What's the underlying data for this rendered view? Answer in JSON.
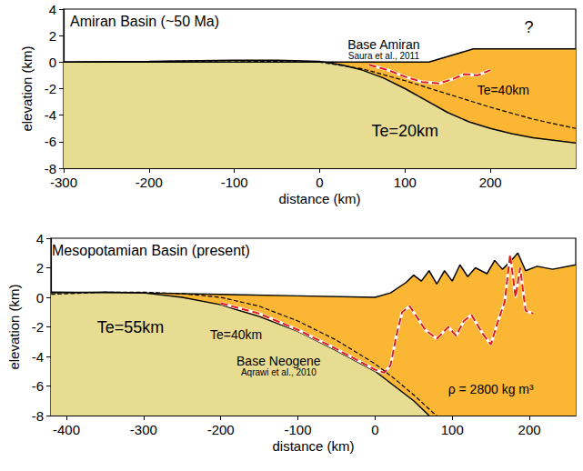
{
  "chart_data": [
    {
      "type": "line",
      "title": "Amiran Basin (~50 Ma)",
      "xlabel": "distance (km)",
      "ylabel": "elevation (km)",
      "xlim": [
        -300,
        300
      ],
      "xticks": [
        -300,
        -200,
        -100,
        0,
        100,
        200
      ],
      "ylim": [
        -8,
        4
      ],
      "yticks": [
        -8,
        -6,
        -4,
        -2,
        0,
        2,
        4
      ],
      "grid": false,
      "series": [
        {
          "type": "area",
          "color": "#fbb633",
          "x": [
            -300,
            128,
            180,
            300
          ],
          "values": [
            0,
            0,
            1,
            1
          ]
        },
        {
          "type": "area",
          "color": "#e8dc92",
          "x": [
            -300,
            -200,
            -100,
            -50,
            0,
            25,
            50,
            75,
            100,
            125,
            150,
            175,
            200,
            225,
            250,
            300
          ],
          "values": [
            0,
            0.05,
            0.15,
            0.15,
            0.05,
            -0.2,
            -0.6,
            -1.2,
            -2.0,
            -2.9,
            -3.8,
            -4.5,
            -5.0,
            -5.4,
            -5.7,
            -6.1
          ]
        },
        {
          "type": "line",
          "color": "#000000",
          "line_style": "dashed",
          "x": [
            -300,
            -200,
            -100,
            0,
            50,
            100,
            150,
            200,
            250,
            300
          ],
          "values": [
            0,
            0.05,
            0.1,
            0,
            -0.5,
            -1.4,
            -2.4,
            -3.4,
            -4.3,
            -5.0
          ]
        },
        {
          "type": "line",
          "color": "#e31a1c",
          "line_style": "dashed",
          "x": [
            58,
            80,
            100,
            120,
            140,
            155,
            170,
            185,
            200
          ],
          "values": [
            -0.2,
            -0.6,
            -1.1,
            -1.5,
            -1.6,
            -1.3,
            -0.9,
            -1.0,
            -0.6
          ]
        }
      ],
      "annotations": [
        {
          "text": "Base Amiran",
          "x": 75,
          "y": 1.35
        },
        {
          "text": "Saura et al., 2011",
          "x": 75,
          "y": 0.5
        },
        {
          "text": "?",
          "x": 245,
          "y": 2.6
        },
        {
          "text": "Te=40km",
          "x": 215,
          "y": -2.1
        },
        {
          "text": "Te=20km",
          "x": 100,
          "y": -5.2
        }
      ]
    },
    {
      "type": "line",
      "title": "Mesopotamian Basin (present)",
      "xlabel": "distance (km)",
      "ylabel": "elevation (km)",
      "xlim": [
        -420,
        260
      ],
      "xticks": [
        -400,
        -300,
        -200,
        -100,
        0,
        100,
        200
      ],
      "ylim": [
        -8,
        4
      ],
      "yticks": [
        -8,
        -6,
        -4,
        -2,
        0,
        2,
        4
      ],
      "grid": false,
      "series": [
        {
          "type": "area",
          "color": "#fbb633",
          "x": [
            -420,
            -300,
            -200,
            -100,
            0,
            20,
            40,
            50,
            60,
            70,
            80,
            90,
            100,
            110,
            120,
            130,
            145,
            155,
            165,
            175,
            185,
            195,
            210,
            230,
            260
          ],
          "values": [
            0.35,
            0.3,
            0.2,
            0.1,
            0,
            0.3,
            1.0,
            1.5,
            1.1,
            1.8,
            0.9,
            1.8,
            1.1,
            2.2,
            1.4,
            2.0,
            1.6,
            2.5,
            1.9,
            2.4,
            3.0,
            1.8,
            2.1,
            1.9,
            2.2
          ]
        },
        {
          "type": "area",
          "color": "#e8dc92",
          "x": [
            -420,
            -350,
            -300,
            -250,
            -200,
            -150,
            -100,
            -50,
            0,
            25,
            50,
            70
          ],
          "values": [
            0.3,
            0.35,
            0.3,
            0.0,
            -0.5,
            -1.3,
            -2.3,
            -3.6,
            -5.0,
            -6.0,
            -7.0,
            -8.0
          ]
        },
        {
          "type": "line",
          "color": "#000000",
          "line_style": "dashed",
          "x": [
            -420,
            -350,
            -300,
            -250,
            -200,
            -150,
            -100,
            -50,
            0,
            25,
            50,
            75,
            80
          ],
          "values": [
            0.2,
            0.35,
            0.35,
            0.25,
            0.0,
            -0.6,
            -1.6,
            -2.9,
            -4.5,
            -5.5,
            -6.6,
            -7.8,
            -8.0
          ]
        },
        {
          "type": "line",
          "color": "#e31a1c",
          "line_style": "dashed",
          "x": [
            -200,
            -150,
            -100,
            -50,
            0,
            12,
            20,
            28,
            35,
            45,
            55,
            65,
            80,
            95,
            105,
            115,
            125,
            140,
            150,
            160,
            168,
            175,
            182,
            188,
            195,
            205
          ],
          "values": [
            -0.4,
            -1.1,
            -2.2,
            -3.5,
            -4.9,
            -5.1,
            -4.6,
            -2.5,
            -1.0,
            -0.6,
            -1.4,
            -2.2,
            -2.8,
            -2.0,
            -2.6,
            -1.6,
            -1.2,
            -2.5,
            -3.2,
            -1.5,
            -0.3,
            2.9,
            0.0,
            2.0,
            -0.9,
            -1.1
          ]
        }
      ],
      "annotations": [
        {
          "text": "Te=55km",
          "x": -317,
          "y": -2.0
        },
        {
          "text": "Te=40km",
          "x": -180,
          "y": -2.5
        },
        {
          "text": "Base Neogene",
          "x": -125,
          "y": -4.3
        },
        {
          "text": "Aqrawi et al., 2010",
          "x": -125,
          "y": -5.1
        },
        {
          "text": "ρ = 2800 kg m³",
          "x": 150,
          "y": -6.2
        }
      ]
    }
  ]
}
